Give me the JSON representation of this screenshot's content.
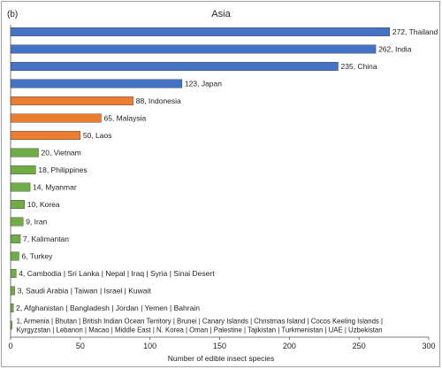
{
  "panel_label": "(b)",
  "chart_data": {
    "type": "bar",
    "orientation": "horizontal",
    "title": "Asia",
    "xlabel": "Number of edible insect species",
    "ylabel": "",
    "xlim": [
      0,
      300
    ],
    "xticks": [
      0,
      50,
      100,
      150,
      200,
      250,
      300
    ],
    "grid": false,
    "legend": "none",
    "colors": {
      "high": "#4472c4",
      "medium": "#ed7d31",
      "low": "#70ad47"
    },
    "bars": [
      {
        "value": 272,
        "label": "272, Thailand",
        "group": "high"
      },
      {
        "value": 262,
        "label": "262, India",
        "group": "high"
      },
      {
        "value": 235,
        "label": "235, China",
        "group": "high"
      },
      {
        "value": 123,
        "label": "123, Japan",
        "group": "high"
      },
      {
        "value": 88,
        "label": "88, Indonesia",
        "group": "medium"
      },
      {
        "value": 65,
        "label": "65, Malaysia",
        "group": "medium"
      },
      {
        "value": 50,
        "label": "50, Laos",
        "group": "medium"
      },
      {
        "value": 20,
        "label": "20, Vietnam",
        "group": "low"
      },
      {
        "value": 18,
        "label": "18, Philippines",
        "group": "low"
      },
      {
        "value": 14,
        "label": "14, Myanmar",
        "group": "low"
      },
      {
        "value": 10,
        "label": "10, Korea",
        "group": "low"
      },
      {
        "value": 9,
        "label": "9, Iran",
        "group": "low"
      },
      {
        "value": 7,
        "label": "7, Kalimantan",
        "group": "low"
      },
      {
        "value": 6,
        "label": "6, Turkey",
        "group": "low"
      },
      {
        "value": 4,
        "label": "4, Cambodia | Sri Lanka | Nepal | Iraq | Syria | Sinai Desert",
        "group": "low"
      },
      {
        "value": 3,
        "label": "3, Saudi Arabia | Taiwan | Israel | Kuwait",
        "group": "low"
      },
      {
        "value": 2,
        "label": "2, Afghanistan | Bangladesh | Jordan | Yemen | Bahrain",
        "group": "low"
      },
      {
        "value": 1,
        "label": "1, Armenia | Bhutan | British Indian Ocean Territory | Brunei | Canary Islands | Christmas Island | Cocos Keeling Islands |",
        "label2": "Kyrgyzstan | Lebanon | Macao | Middle East | N. Korea | Oman | Palestine | Tajikistan | Turkmenistan | UAE | Uzbekistan",
        "group": "low"
      }
    ]
  }
}
